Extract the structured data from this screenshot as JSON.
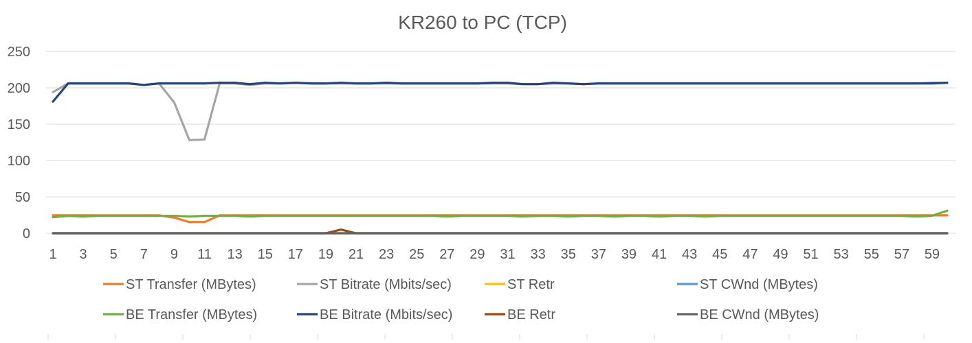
{
  "chart_data": {
    "type": "line",
    "title": "KR260 to PC (TCP)",
    "xlabel": "",
    "ylabel": "",
    "ylim": [
      0,
      250
    ],
    "yticks": [
      0,
      50,
      100,
      150,
      200,
      250
    ],
    "xlim": [
      1,
      60
    ],
    "xticks": [
      1,
      3,
      5,
      7,
      9,
      11,
      13,
      15,
      17,
      19,
      21,
      23,
      25,
      27,
      29,
      31,
      33,
      35,
      37,
      39,
      41,
      43,
      45,
      47,
      49,
      51,
      53,
      55,
      57,
      59
    ],
    "grid": true,
    "legend_position": "bottom",
    "x": [
      1,
      2,
      3,
      4,
      5,
      6,
      7,
      8,
      9,
      10,
      11,
      12,
      13,
      14,
      15,
      16,
      17,
      18,
      19,
      20,
      21,
      22,
      23,
      24,
      25,
      26,
      27,
      28,
      29,
      30,
      31,
      32,
      33,
      34,
      35,
      36,
      37,
      38,
      39,
      40,
      41,
      42,
      43,
      44,
      45,
      46,
      47,
      48,
      49,
      50,
      51,
      52,
      53,
      54,
      55,
      56,
      57,
      58,
      59,
      60
    ],
    "series": [
      {
        "name": "ST Transfer (MBytes)",
        "color": "#ED7D31",
        "values": [
          24.6,
          24.6,
          24.6,
          24.6,
          24.6,
          24.6,
          24.6,
          24.6,
          21.4,
          15.4,
          15.4,
          24.6,
          24.6,
          24.6,
          24.6,
          24.6,
          24.6,
          24.6,
          24.6,
          24.6,
          24.6,
          24.6,
          24.6,
          24.6,
          24.6,
          24.6,
          24.6,
          24.6,
          24.6,
          24.6,
          24.6,
          24.6,
          24.6,
          24.6,
          24.6,
          24.6,
          24.6,
          24.6,
          24.6,
          24.6,
          24.6,
          24.6,
          24.6,
          24.6,
          24.6,
          24.6,
          24.6,
          24.6,
          24.6,
          24.6,
          24.6,
          24.6,
          24.6,
          24.6,
          24.6,
          24.6,
          24.6,
          24.6,
          24.6,
          24.6
        ]
      },
      {
        "name": "ST Bitrate (Mbits/sec)",
        "color": "#A5A5A5",
        "values": [
          194,
          206,
          206,
          206,
          206,
          206,
          204,
          206,
          180,
          128,
          129,
          206,
          206,
          204,
          206,
          206,
          207,
          206,
          206,
          206,
          206,
          206,
          206,
          206,
          206,
          206,
          206,
          206,
          206,
          206,
          206,
          205,
          205,
          206,
          206,
          205,
          206,
          206,
          206,
          206,
          206,
          206,
          206,
          206,
          206,
          206,
          206,
          206,
          206,
          206,
          206,
          206,
          206,
          206,
          206,
          206,
          206,
          206,
          207,
          207
        ]
      },
      {
        "name": "ST Retr",
        "color": "#FFC000",
        "values": [
          0,
          0,
          0,
          0,
          0,
          0,
          0,
          0,
          0,
          0,
          0,
          0,
          0,
          0,
          0,
          0,
          0,
          0,
          0,
          0,
          0,
          0,
          0,
          0,
          0,
          0,
          0,
          0,
          0,
          0,
          0,
          0,
          0,
          0,
          0,
          0,
          0,
          0,
          0,
          0,
          0,
          0,
          0,
          0,
          0,
          0,
          0,
          0,
          0,
          0,
          0,
          0,
          0,
          0,
          0,
          0,
          0,
          0,
          0,
          0
        ]
      },
      {
        "name": "ST CWnd (MBytes)",
        "color": "#5B9BD5",
        "values": [
          0,
          0,
          0,
          0,
          0,
          0,
          0,
          0,
          0,
          0,
          0,
          0,
          0,
          0,
          0,
          0,
          0,
          0,
          0,
          0,
          0,
          0,
          0,
          0,
          0,
          0,
          0,
          0,
          0,
          0,
          0,
          0,
          0,
          0,
          0,
          0,
          0,
          0,
          0,
          0,
          0,
          0,
          0,
          0,
          0,
          0,
          0,
          0,
          0,
          0,
          0,
          0,
          0,
          0,
          0,
          0,
          0,
          0,
          0,
          0
        ]
      },
      {
        "name": "BE Transfer (MBytes)",
        "color": "#70AD47",
        "values": [
          22,
          24,
          23,
          24,
          24,
          24,
          24,
          24,
          24,
          23,
          24,
          24,
          24,
          23,
          24,
          24,
          24,
          24,
          24,
          24,
          24,
          24,
          24,
          24,
          24,
          24,
          23,
          24,
          24,
          24,
          24,
          23,
          24,
          24,
          23,
          24,
          24,
          23,
          24,
          24,
          23,
          24,
          24,
          23,
          24,
          24,
          24,
          24,
          24,
          24,
          24,
          24,
          24,
          24,
          24,
          24,
          24,
          23,
          24,
          31
        ]
      },
      {
        "name": "BE Bitrate (Mbits/sec)",
        "color": "#264478",
        "values": [
          181,
          206,
          206,
          206,
          206,
          206,
          204,
          206,
          206,
          206,
          206,
          207,
          207,
          205,
          207,
          206,
          207,
          206,
          206,
          207,
          206,
          206,
          207,
          206,
          206,
          206,
          206,
          206,
          206,
          207,
          207,
          205,
          205,
          207,
          206,
          205,
          206,
          206,
          206,
          206,
          206,
          206,
          206,
          206,
          206,
          206,
          206,
          206,
          206,
          206,
          206,
          206,
          206,
          206,
          206,
          206,
          206,
          206,
          206,
          207
        ]
      },
      {
        "name": "BE Retr",
        "color": "#9E480E",
        "values": [
          0,
          0,
          0,
          0,
          0,
          0,
          0,
          0,
          0,
          0,
          0,
          0,
          0,
          0,
          0,
          0,
          0,
          0,
          0,
          5,
          0,
          0,
          0,
          0,
          0,
          0,
          0,
          0,
          0,
          0,
          0,
          0,
          0,
          0,
          0,
          0,
          0,
          0,
          0,
          0,
          0,
          0,
          0,
          0,
          0,
          0,
          0,
          0,
          0,
          0,
          0,
          0,
          0,
          0,
          0,
          0,
          0,
          0,
          0,
          0
        ]
      },
      {
        "name": "BE CWnd (MBytes)",
        "color": "#636363",
        "values": [
          0,
          0,
          0,
          0,
          0,
          0,
          0,
          0,
          0,
          0,
          0,
          0,
          0,
          0,
          0,
          0,
          0,
          0,
          0,
          0,
          0,
          0,
          0,
          0,
          0,
          0,
          0,
          0,
          0,
          0,
          0,
          0,
          0,
          0,
          0,
          0,
          0,
          0,
          0,
          0,
          0,
          0,
          0,
          0,
          0,
          0,
          0,
          0,
          0,
          0,
          0,
          0,
          0,
          0,
          0,
          0,
          0,
          0,
          0,
          0
        ]
      }
    ]
  }
}
